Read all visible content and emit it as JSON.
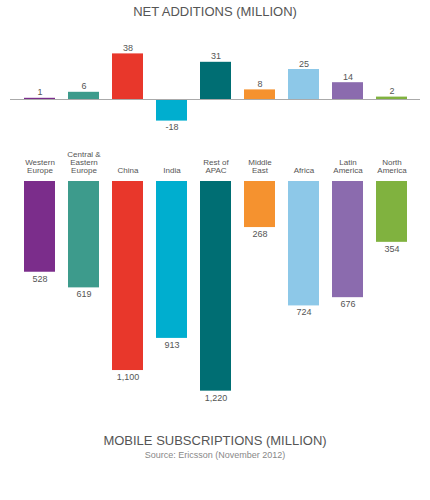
{
  "chart_data": [
    {
      "type": "bar",
      "title": "NET ADDITIONS (MILLION)",
      "categories": [
        "Western\nEurope",
        "Central &\nEastern\nEurope",
        "China",
        "India",
        "Rest of\nAPAC",
        "Middle\nEast",
        "Africa",
        "Latin\nAmerica",
        "North\nAmerica"
      ],
      "values": [
        1,
        6,
        38,
        -18,
        31,
        8,
        25,
        14,
        2
      ],
      "colors": [
        "#7B2D8B",
        "#3D9B8C",
        "#E8372B",
        "#00AECF",
        "#006E73",
        "#F5922F",
        "#8DC8E8",
        "#8B6BAE",
        "#80B23F"
      ],
      "ylim": [
        -20,
        55
      ],
      "data_labels": true,
      "tick_labels": false
    },
    {
      "type": "bar",
      "title": "MOBILE SUBSCRIPTIONS (MILLION)",
      "categories": [
        "Western\nEurope",
        "Central &\nEastern\nEurope",
        "China",
        "India",
        "Rest of\nAPAC",
        "Middle\nEast",
        "Africa",
        "Latin\nAmerica",
        "North\nAmerica"
      ],
      "values": [
        528,
        619,
        1100,
        913,
        1220,
        268,
        724,
        676,
        354
      ],
      "value_labels": [
        "528",
        "619",
        "1,100",
        "913",
        "1,220",
        "268",
        "724",
        "676",
        "354"
      ],
      "colors": [
        "#7B2D8B",
        "#3D9B8C",
        "#E8372B",
        "#00AECF",
        "#006E73",
        "#F5922F",
        "#8DC8E8",
        "#8B6BAE",
        "#80B23F"
      ],
      "ylim": [
        0,
        1350
      ],
      "data_labels": true,
      "tick_labels": "x",
      "annotations": [
        "Source: Ericsson (November 2012)"
      ]
    }
  ]
}
